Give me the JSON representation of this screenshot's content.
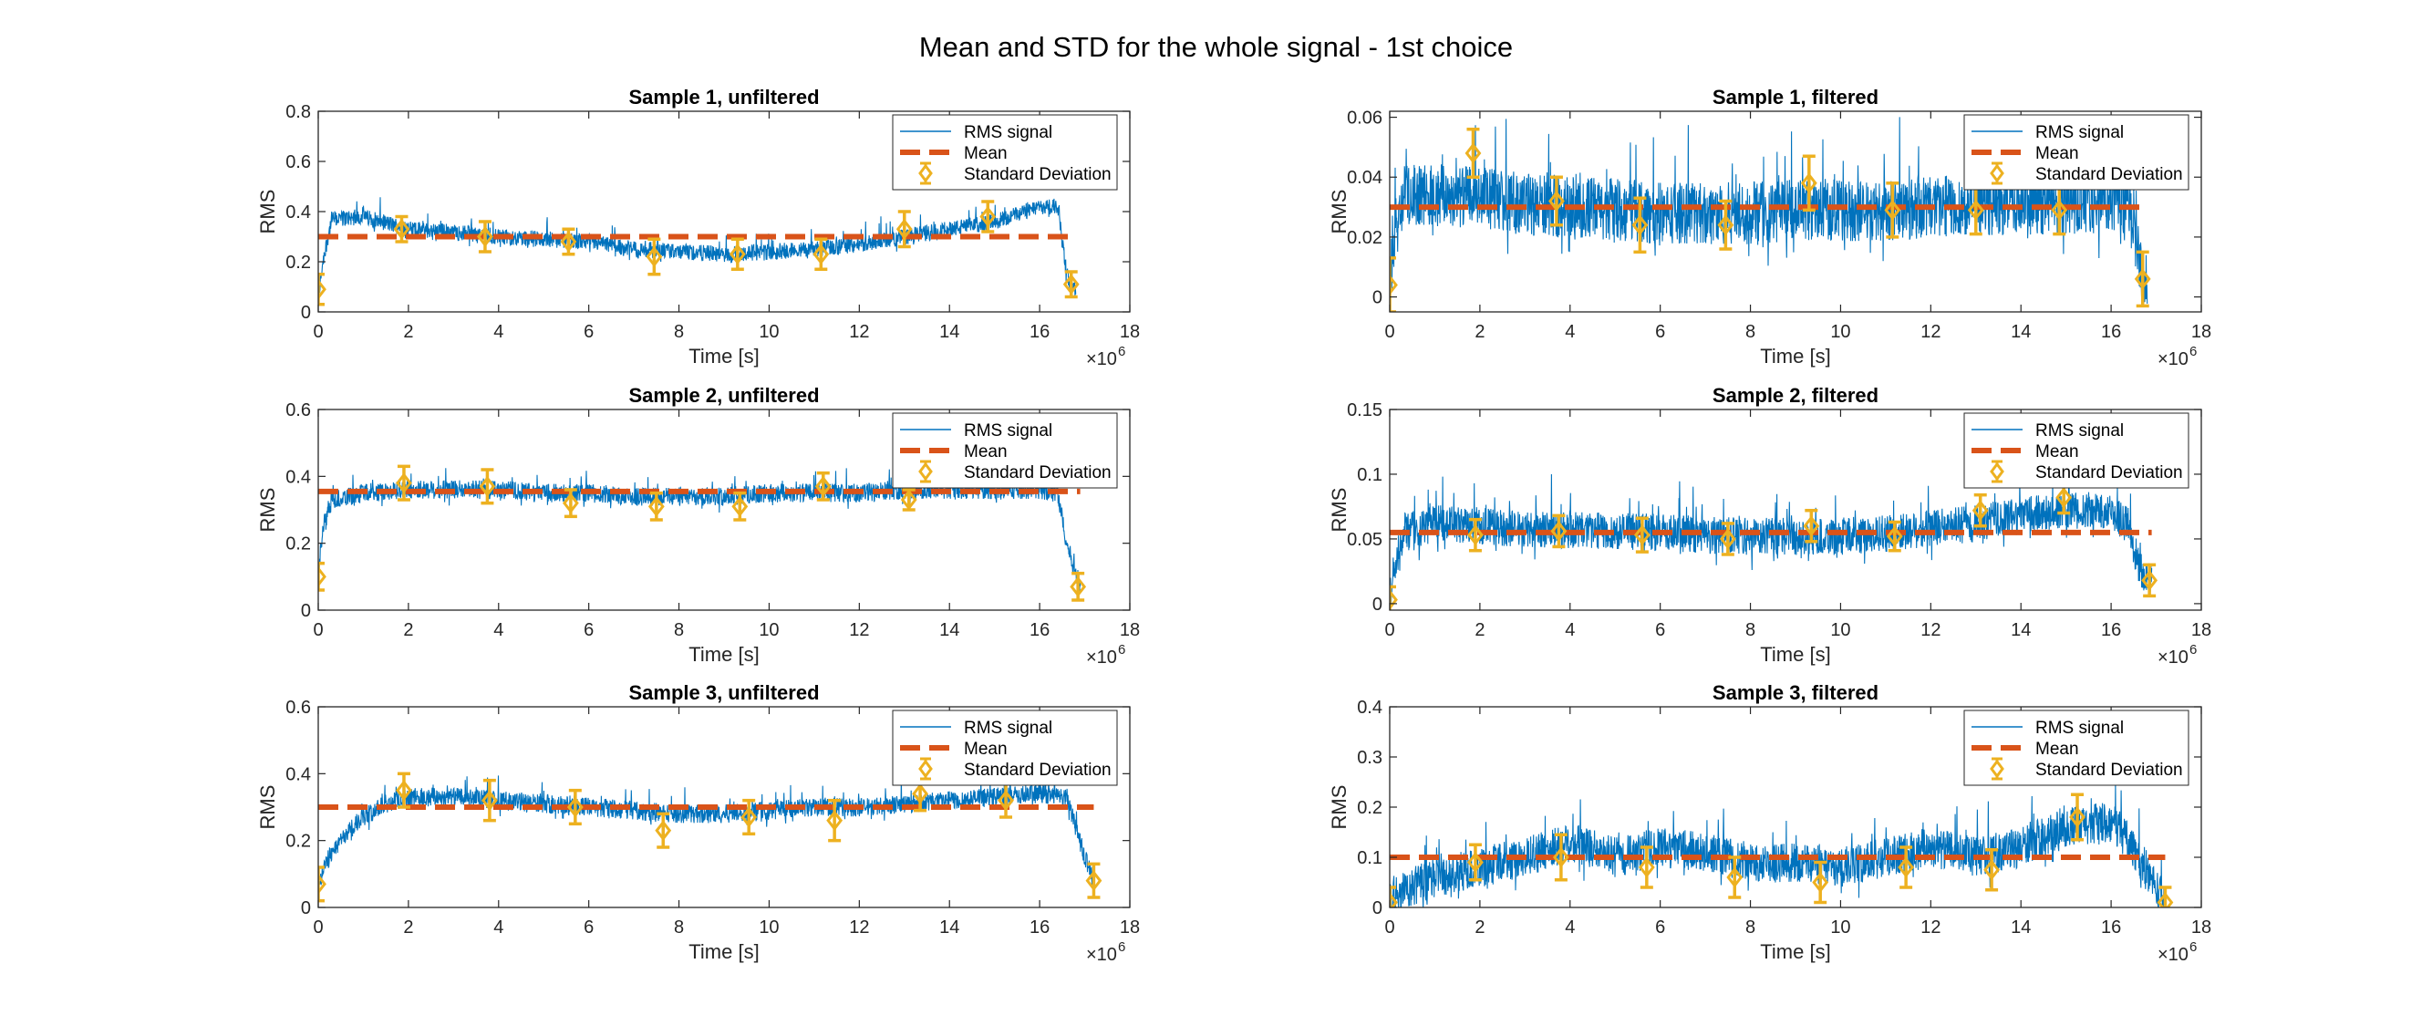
{
  "figure": {
    "title": "Mean and STD for the whole signal - 1st choice"
  },
  "colors": {
    "signal": "#0072BD",
    "mean": "#D95319",
    "std": "#EDB120",
    "axis": "#262626"
  },
  "chart_data": [
    {
      "type": "line",
      "title": "Sample 1, unfiltered",
      "xlabel": "Time [s]",
      "ylabel": "RMS",
      "xlim": [
        0,
        18
      ],
      "ylim": [
        0,
        0.8
      ],
      "x_multiplier": "×10",
      "x_multiplier_exp": "6",
      "xticks": [
        0,
        2,
        4,
        6,
        8,
        10,
        12,
        14,
        16,
        18
      ],
      "yticks": [
        0,
        0.2,
        0.4,
        0.6,
        0.8
      ],
      "ytick_labels": [
        "0",
        "0.2",
        "0.4",
        "0.6",
        "0.8"
      ],
      "legend": [
        "RMS signal",
        "Mean",
        "Standard Deviation"
      ],
      "legend_position": "top-right",
      "signal_envelope": {
        "x": [
          0,
          0.1,
          0.3,
          1.0,
          2.0,
          3.0,
          4.0,
          5.0,
          6.0,
          7.0,
          8.0,
          9.0,
          10.0,
          11.0,
          12.0,
          13.0,
          14.0,
          15.0,
          16.0,
          16.4,
          16.6,
          16.8
        ],
        "y": [
          0.05,
          0.2,
          0.37,
          0.38,
          0.33,
          0.32,
          0.3,
          0.29,
          0.28,
          0.25,
          0.24,
          0.23,
          0.24,
          0.25,
          0.27,
          0.3,
          0.33,
          0.36,
          0.42,
          0.42,
          0.15,
          0.08
        ],
        "noise": 0.04
      },
      "mean": {
        "value": 0.3,
        "x_range": [
          0,
          16.7
        ]
      },
      "std_points": {
        "x": [
          0,
          1.85,
          3.7,
          5.55,
          7.45,
          9.3,
          11.15,
          13.0,
          14.85,
          16.7
        ],
        "y": [
          0.09,
          0.33,
          0.3,
          0.28,
          0.22,
          0.23,
          0.23,
          0.33,
          0.38,
          0.11
        ],
        "err": [
          0.06,
          0.05,
          0.06,
          0.05,
          0.07,
          0.06,
          0.06,
          0.07,
          0.06,
          0.05
        ]
      }
    },
    {
      "type": "line",
      "title": "Sample 1, filtered",
      "xlabel": "Time [s]",
      "ylabel": "RMS",
      "xlim": [
        0,
        18
      ],
      "ylim": [
        -0.005,
        0.062
      ],
      "x_multiplier": "×10",
      "x_multiplier_exp": "6",
      "xticks": [
        0,
        2,
        4,
        6,
        8,
        10,
        12,
        14,
        16,
        18
      ],
      "yticks": [
        0,
        0.02,
        0.04,
        0.06
      ],
      "ytick_labels": [
        "0",
        "0.02",
        "0.04",
        "0.06"
      ],
      "legend": [
        "RMS signal",
        "Mean",
        "Standard Deviation"
      ],
      "legend_position": "top-right",
      "signal_envelope": {
        "x": [
          0,
          0.1,
          0.3,
          1.0,
          2.0,
          3.0,
          4.0,
          5.0,
          6.0,
          7.0,
          8.0,
          9.0,
          10.0,
          11.0,
          12.0,
          13.0,
          14.0,
          15.0,
          16.0,
          16.4,
          16.6,
          16.8
        ],
        "y": [
          0.003,
          0.02,
          0.034,
          0.034,
          0.033,
          0.031,
          0.03,
          0.029,
          0.028,
          0.028,
          0.028,
          0.029,
          0.029,
          0.029,
          0.03,
          0.031,
          0.031,
          0.031,
          0.032,
          0.031,
          0.012,
          0.005
        ],
        "noise": 0.013
      },
      "mean": {
        "value": 0.03,
        "x_range": [
          0,
          16.7
        ]
      },
      "std_points": {
        "x": [
          0,
          1.85,
          3.7,
          5.55,
          7.45,
          9.3,
          11.15,
          13.0,
          14.85,
          16.7
        ],
        "y": [
          0.004,
          0.048,
          0.032,
          0.024,
          0.024,
          0.038,
          0.029,
          0.029,
          0.029,
          0.006
        ],
        "err": [
          0.009,
          0.008,
          0.008,
          0.009,
          0.008,
          0.009,
          0.009,
          0.008,
          0.008,
          0.009
        ]
      }
    },
    {
      "type": "line",
      "title": "Sample 2, unfiltered",
      "xlabel": "Time [s]",
      "ylabel": "RMS",
      "xlim": [
        0,
        18
      ],
      "ylim": [
        0,
        0.6
      ],
      "x_multiplier": "×10",
      "x_multiplier_exp": "6",
      "xticks": [
        0,
        2,
        4,
        6,
        8,
        10,
        12,
        14,
        16,
        18
      ],
      "yticks": [
        0,
        0.2,
        0.4,
        0.6
      ],
      "ytick_labels": [
        "0",
        "0.2",
        "0.4",
        "0.6"
      ],
      "legend": [
        "RMS signal",
        "Mean",
        "Standard Deviation"
      ],
      "legend_position": "top-right",
      "signal_envelope": {
        "x": [
          0,
          0.1,
          0.3,
          1.0,
          2.0,
          3.0,
          4.0,
          5.0,
          6.0,
          7.0,
          8.0,
          9.0,
          10.0,
          11.0,
          12.0,
          13.0,
          14.0,
          15.0,
          16.0,
          16.4,
          16.6,
          16.9
        ],
        "y": [
          0.1,
          0.25,
          0.33,
          0.35,
          0.36,
          0.36,
          0.36,
          0.35,
          0.35,
          0.34,
          0.34,
          0.34,
          0.35,
          0.35,
          0.35,
          0.36,
          0.36,
          0.36,
          0.36,
          0.35,
          0.2,
          0.06
        ],
        "noise": 0.035
      },
      "mean": {
        "value": 0.355,
        "x_range": [
          0,
          16.9
        ]
      },
      "std_points": {
        "x": [
          0,
          1.9,
          3.75,
          5.6,
          7.5,
          9.35,
          11.2,
          13.1,
          14.95,
          16.85
        ],
        "y": [
          0.1,
          0.38,
          0.37,
          0.32,
          0.31,
          0.31,
          0.37,
          0.33,
          0.44,
          0.07
        ],
        "err": [
          0.04,
          0.05,
          0.05,
          0.04,
          0.04,
          0.04,
          0.04,
          0.03,
          0.04,
          0.04
        ]
      }
    },
    {
      "type": "line",
      "title": "Sample 2, filtered",
      "xlabel": "Time [s]",
      "ylabel": "RMS",
      "xlim": [
        0,
        18
      ],
      "ylim": [
        -0.005,
        0.15
      ],
      "x_multiplier": "×10",
      "x_multiplier_exp": "6",
      "xticks": [
        0,
        2,
        4,
        6,
        8,
        10,
        12,
        14,
        16,
        18
      ],
      "yticks": [
        0,
        0.05,
        0.1,
        0.15
      ],
      "ytick_labels": [
        "0",
        "0.05",
        "0.1",
        "0.15"
      ],
      "legend": [
        "RMS signal",
        "Mean",
        "Standard Deviation"
      ],
      "legend_position": "top-right",
      "signal_envelope": {
        "x": [
          0,
          0.1,
          0.3,
          1.0,
          2.0,
          3.0,
          4.0,
          5.0,
          6.0,
          7.0,
          8.0,
          9.0,
          10.0,
          11.0,
          12.0,
          13.0,
          14.0,
          15.0,
          16.0,
          16.4,
          16.6,
          16.9
        ],
        "y": [
          0.002,
          0.03,
          0.055,
          0.062,
          0.06,
          0.058,
          0.057,
          0.056,
          0.055,
          0.053,
          0.052,
          0.052,
          0.052,
          0.054,
          0.058,
          0.062,
          0.068,
          0.072,
          0.072,
          0.06,
          0.03,
          0.015
        ],
        "noise": 0.018
      },
      "mean": {
        "value": 0.055,
        "x_range": [
          0,
          16.9
        ]
      },
      "std_points": {
        "x": [
          0,
          1.9,
          3.75,
          5.6,
          7.5,
          9.35,
          11.2,
          13.1,
          14.95,
          16.85
        ],
        "y": [
          0.003,
          0.053,
          0.056,
          0.053,
          0.05,
          0.06,
          0.052,
          0.072,
          0.082,
          0.018
        ],
        "err": [
          0.01,
          0.012,
          0.012,
          0.013,
          0.012,
          0.012,
          0.011,
          0.012,
          0.012,
          0.012
        ]
      }
    },
    {
      "type": "line",
      "title": "Sample 3, unfiltered",
      "xlabel": "Time [s]",
      "ylabel": "RMS",
      "xlim": [
        0,
        18
      ],
      "ylim": [
        0,
        0.6
      ],
      "x_multiplier": "×10",
      "x_multiplier_exp": "6",
      "xticks": [
        0,
        2,
        4,
        6,
        8,
        10,
        12,
        14,
        16,
        18
      ],
      "yticks": [
        0,
        0.2,
        0.4,
        0.6
      ],
      "ytick_labels": [
        "0",
        "0.2",
        "0.4",
        "0.6"
      ],
      "legend": [
        "RMS signal",
        "Mean",
        "Standard Deviation"
      ],
      "legend_position": "top-right",
      "signal_envelope": {
        "x": [
          0,
          0.2,
          0.6,
          1.0,
          1.5,
          2.0,
          3.0,
          4.0,
          5.0,
          6.0,
          7.0,
          8.0,
          9.0,
          10.0,
          11.0,
          12.0,
          13.0,
          14.0,
          15.0,
          16.0,
          16.6,
          17.0,
          17.2
        ],
        "y": [
          0.07,
          0.14,
          0.22,
          0.27,
          0.31,
          0.33,
          0.33,
          0.32,
          0.31,
          0.3,
          0.29,
          0.28,
          0.28,
          0.29,
          0.3,
          0.3,
          0.31,
          0.32,
          0.33,
          0.34,
          0.33,
          0.15,
          0.08
        ],
        "noise": 0.035
      },
      "mean": {
        "value": 0.3,
        "x_range": [
          0,
          17.2
        ]
      },
      "std_points": {
        "x": [
          0,
          1.9,
          3.8,
          5.7,
          7.65,
          9.55,
          11.45,
          13.35,
          15.25,
          17.2
        ],
        "y": [
          0.07,
          0.35,
          0.32,
          0.3,
          0.23,
          0.27,
          0.26,
          0.34,
          0.32,
          0.08
        ],
        "err": [
          0.05,
          0.05,
          0.06,
          0.05,
          0.05,
          0.05,
          0.06,
          0.05,
          0.05,
          0.05
        ]
      }
    },
    {
      "type": "line",
      "title": "Sample 3, filtered",
      "xlabel": "Time [s]",
      "ylabel": "RMS",
      "xlim": [
        0,
        18
      ],
      "ylim": [
        0,
        0.4
      ],
      "x_multiplier": "×10",
      "x_multiplier_exp": "6",
      "xticks": [
        0,
        2,
        4,
        6,
        8,
        10,
        12,
        14,
        16,
        18
      ],
      "yticks": [
        0,
        0.1,
        0.2,
        0.3,
        0.4
      ],
      "ytick_labels": [
        "0",
        "0.1",
        "0.2",
        "0.3",
        "0.4"
      ],
      "legend": [
        "RMS signal",
        "Mean",
        "Standard Deviation"
      ],
      "legend_position": "top-right",
      "signal_envelope": {
        "x": [
          0,
          0.5,
          1.0,
          2.0,
          3.0,
          4.0,
          5.0,
          6.0,
          7.0,
          8.0,
          9.0,
          10.0,
          11.0,
          12.0,
          13.0,
          14.0,
          15.0,
          16.0,
          16.5,
          17.0,
          17.2
        ],
        "y": [
          0.02,
          0.04,
          0.06,
          0.08,
          0.1,
          0.13,
          0.1,
          0.12,
          0.11,
          0.09,
          0.09,
          0.08,
          0.1,
          0.12,
          0.1,
          0.12,
          0.16,
          0.17,
          0.12,
          0.04,
          0.01
        ],
        "noise": 0.05
      },
      "mean": {
        "value": 0.1,
        "x_range": [
          0,
          17.2
        ]
      },
      "std_points": {
        "x": [
          0,
          1.9,
          3.8,
          5.7,
          7.65,
          9.55,
          11.45,
          13.35,
          15.25,
          17.2
        ],
        "y": [
          0.01,
          0.09,
          0.1,
          0.08,
          0.06,
          0.05,
          0.08,
          0.075,
          0.18,
          0.01
        ],
        "err": [
          0.03,
          0.035,
          0.045,
          0.04,
          0.04,
          0.04,
          0.04,
          0.04,
          0.045,
          0.03
        ]
      }
    }
  ]
}
